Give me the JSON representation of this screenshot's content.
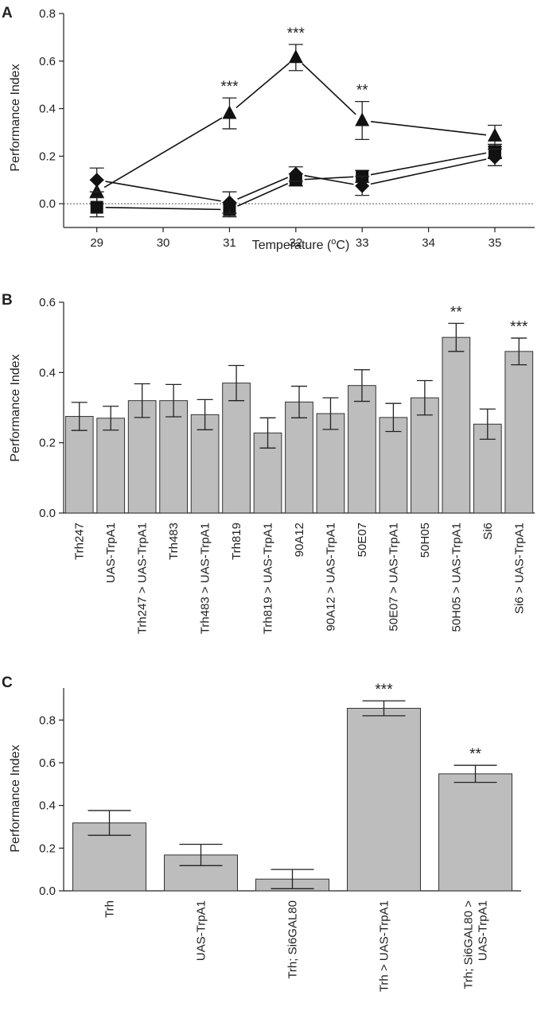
{
  "chart_data": [
    {
      "panel": "A",
      "type": "line",
      "xlabel": "Temperature (oC)",
      "ylabel": "Performance Index",
      "xlim": [
        28.5,
        35.6
      ],
      "ylim": [
        -0.1,
        0.8
      ],
      "xticks": [
        29,
        30,
        31,
        32,
        33,
        34,
        35
      ],
      "yticks": [
        0.0,
        0.2,
        0.4,
        0.6,
        0.8
      ],
      "reference_line": 0,
      "series": [
        {
          "name": "triangle",
          "marker": "triangle",
          "x": [
            29,
            31,
            32,
            33,
            35
          ],
          "values": [
            0.05,
            0.38,
            0.615,
            0.35,
            0.285
          ],
          "errors": [
            0.05,
            0.065,
            0.055,
            0.08,
            0.045
          ]
        },
        {
          "name": "square",
          "marker": "square",
          "x": [
            29,
            31,
            32,
            33,
            35
          ],
          "values": [
            -0.015,
            -0.025,
            0.1,
            0.115,
            0.22
          ],
          "errors": [
            0.04,
            0.03,
            0.025,
            0.025,
            0.03
          ]
        },
        {
          "name": "diamond",
          "marker": "diamond",
          "x": [
            29,
            31,
            32,
            33,
            35
          ],
          "values": [
            0.1,
            0.005,
            0.125,
            0.075,
            0.195
          ],
          "errors": [
            0.05,
            0.045,
            0.03,
            0.04,
            0.035
          ]
        }
      ],
      "annotations": [
        {
          "x": 31,
          "text": "***"
        },
        {
          "x": 32,
          "text": "***"
        },
        {
          "x": 33,
          "text": "**"
        }
      ]
    },
    {
      "panel": "B",
      "type": "bar",
      "ylabel": "Performance Index",
      "ylim": [
        0,
        0.6
      ],
      "yticks": [
        0.0,
        0.2,
        0.4,
        0.6
      ],
      "categories": [
        "Trh247",
        "UAS-TrpA1",
        "Trh247 > UAS-TrpA1",
        "Trh483",
        "Trh483 > UAS-TrpA1",
        "Trh819",
        "Trh819 > UAS-TrpA1",
        "90A12",
        "90A12 > UAS-TrpA1",
        "50E07",
        "50E07 > UAS-TrpA1",
        "50H05",
        "50H05 > UAS-TrpA1",
        "Si6",
        "Si6 > UAS-TrpA1"
      ],
      "values": [
        0.275,
        0.27,
        0.32,
        0.32,
        0.28,
        0.37,
        0.228,
        0.316,
        0.283,
        0.363,
        0.272,
        0.328,
        0.5,
        0.253,
        0.46
      ],
      "errors": [
        0.04,
        0.034,
        0.048,
        0.046,
        0.043,
        0.05,
        0.043,
        0.045,
        0.045,
        0.045,
        0.04,
        0.049,
        0.04,
        0.043,
        0.038
      ],
      "annotations": [
        {
          "index": 12,
          "text": "**"
        },
        {
          "index": 14,
          "text": "***"
        }
      ]
    },
    {
      "panel": "C",
      "type": "bar",
      "ylabel": "Performance Index",
      "ylim": [
        0,
        0.95
      ],
      "yticks": [
        0.0,
        0.2,
        0.4,
        0.6,
        0.8
      ],
      "categories": [
        "Trh",
        "UAS-TrpA1",
        "Trh; Si6GAL80",
        "Trh > UAS-TrpA1",
        "Trh; Si6GAL80 > UAS-TrpA1"
      ],
      "values": [
        0.318,
        0.168,
        0.055,
        0.855,
        0.548
      ],
      "errors": [
        0.058,
        0.05,
        0.045,
        0.035,
        0.04
      ],
      "annotations": [
        {
          "index": 3,
          "text": "***"
        },
        {
          "index": 4,
          "text": "**"
        }
      ]
    }
  ],
  "panel_letters": [
    "A",
    "B",
    "C"
  ],
  "labels": {
    "ylabel": "Performance Index",
    "xlabel_a_prefix": "Temperature (",
    "xlabel_a_sup": "o",
    "xlabel_a_suffix": "C)",
    "c_last_line1": "Trh; Si6GAL80 >",
    "c_last_line2": "UAS-TrpA1"
  }
}
